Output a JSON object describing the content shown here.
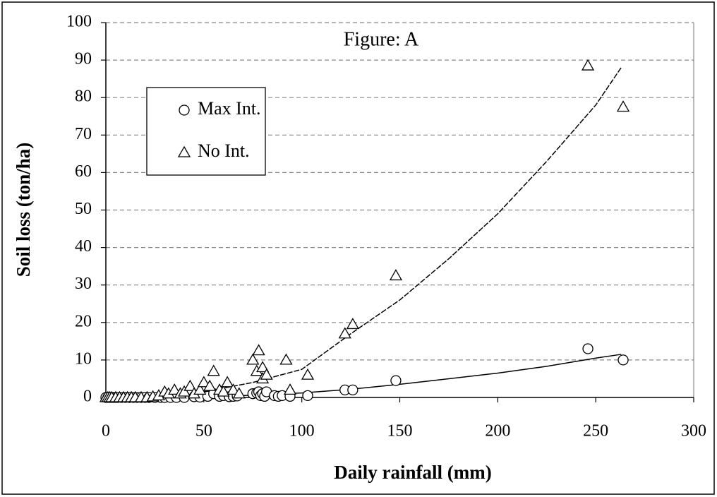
{
  "chart_data": {
    "type": "scatter",
    "title": "Figure: A",
    "x_label": "Daily rainfall (mm)",
    "y_label": "Soil loss (ton/ha)",
    "xlim": [
      0,
      300
    ],
    "xticks": [
      0,
      50,
      100,
      150,
      200,
      250,
      300
    ],
    "ylim": [
      0,
      100
    ],
    "yticks": [
      0,
      10,
      20,
      30,
      40,
      50,
      60,
      70,
      80,
      90,
      100
    ],
    "grid": true,
    "series": [
      {
        "name": "Max Int.",
        "marker": "circle",
        "color": "#000000",
        "x": [
          0,
          1,
          2,
          3,
          4,
          5,
          6,
          8,
          10,
          12,
          14,
          16,
          18,
          20,
          22,
          25,
          28,
          30,
          33,
          36,
          40,
          45,
          48,
          52,
          55,
          58,
          60,
          63,
          65,
          67,
          75,
          77,
          78,
          79,
          80,
          81,
          82,
          86,
          88,
          90,
          94,
          103,
          122,
          126,
          148,
          246,
          264
        ],
        "values": [
          0,
          0,
          0,
          0,
          0,
          0,
          0,
          0,
          0,
          0,
          0,
          0,
          0,
          0,
          0,
          0,
          0,
          0,
          0,
          0,
          0,
          0.2,
          0.1,
          0.3,
          1,
          0.3,
          0.5,
          0.2,
          0.3,
          0.4,
          1,
          1.2,
          1.5,
          0.5,
          1,
          0.3,
          1.5,
          0.5,
          0.3,
          0.5,
          0.3,
          0.5,
          2,
          2,
          4.5,
          13,
          10
        ],
        "trend": {
          "dash": false,
          "x": [
            0,
            25,
            50,
            75,
            100,
            125,
            150,
            175,
            200,
            225,
            250,
            263
          ],
          "values": [
            0,
            0.05,
            0.2,
            0.6,
            1.2,
            2.2,
            3.5,
            5,
            6.5,
            8.3,
            10.5,
            11.5
          ]
        }
      },
      {
        "name": "No Int.",
        "marker": "triangle",
        "color": "#000000",
        "x": [
          0,
          1,
          2,
          3,
          5,
          7,
          9,
          11,
          13,
          15,
          18,
          21,
          24,
          27,
          30,
          32,
          35,
          38,
          40,
          43,
          45,
          48,
          50,
          53,
          55,
          58,
          60,
          62,
          65,
          68,
          75,
          77,
          78,
          80,
          80,
          82,
          92,
          94,
          103,
          122,
          126,
          148,
          246,
          264
        ],
        "values": [
          0,
          0,
          0,
          0,
          0,
          0,
          0,
          0,
          0,
          0,
          0,
          0,
          0.2,
          0.5,
          1.5,
          1,
          2,
          1,
          1.5,
          3,
          1,
          2,
          4,
          3,
          7,
          2,
          1.5,
          4,
          2,
          1,
          10,
          7,
          12.5,
          8,
          5,
          6,
          10,
          2,
          6,
          17,
          19.5,
          32.5,
          88.5,
          77.5
        ],
        "trend": {
          "dash": true,
          "x": [
            0,
            25,
            50,
            75,
            100,
            125,
            150,
            175,
            200,
            225,
            250,
            263
          ],
          "values": [
            0,
            0.2,
            1.5,
            4,
            7.5,
            17,
            26,
            37,
            49,
            63,
            78,
            88
          ]
        }
      }
    ]
  }
}
